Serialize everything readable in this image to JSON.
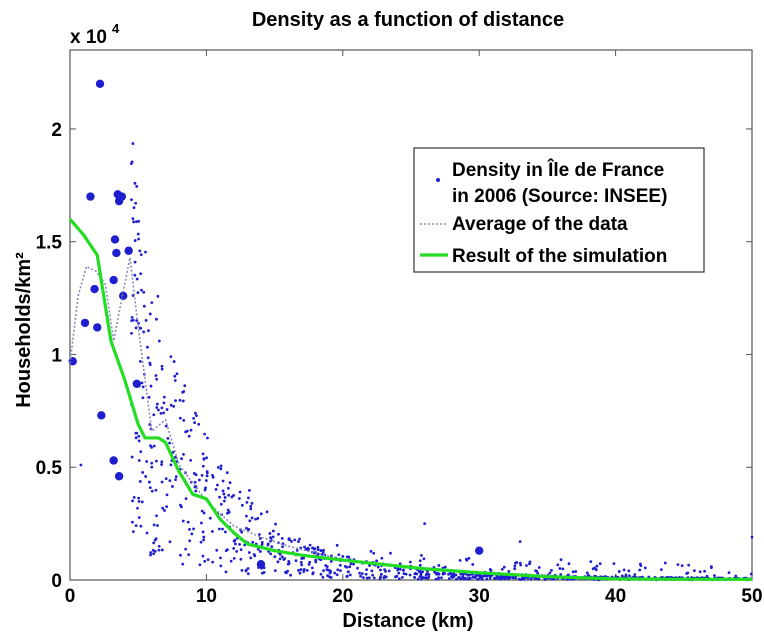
{
  "chart_data": {
    "type": "scatter",
    "title": "Density as a function of distance",
    "xlabel": "Distance (km)",
    "ylabel": "Households/km²",
    "exponent_label": "x 10",
    "exponent_power": "4",
    "xlim": [
      0,
      50
    ],
    "ylim": [
      0,
      23500
    ],
    "x_ticks": [
      0,
      10,
      20,
      30,
      40,
      50
    ],
    "x_tick_labels": [
      "0",
      "10",
      "20",
      "30",
      "40",
      "50"
    ],
    "y_ticks": [
      0,
      5000,
      10000,
      15000,
      20000
    ],
    "y_tick_labels": [
      "0",
      "0.5",
      "1",
      "1.5",
      "2"
    ],
    "grid": false,
    "legend_position": "top-right",
    "legend": {
      "scatter_line1": "Density in Île de France",
      "scatter_line2": "in 2006 (Source: INSEE)",
      "average": "Average of the data",
      "simulation": "Result of the simulation"
    },
    "colors": {
      "scatter": "#1f1fd0",
      "average": "#8a8ab8",
      "simulation": "#22dd22"
    },
    "series": [
      {
        "name": "Density in Île de France in 2006 (Source: INSEE)",
        "kind": "scatter",
        "large_points": [
          {
            "x": 2.2,
            "y": 22000
          },
          {
            "x": 3.5,
            "y": 17100
          },
          {
            "x": 3.8,
            "y": 17000
          },
          {
            "x": 3.6,
            "y": 16800
          },
          {
            "x": 3.3,
            "y": 15100
          },
          {
            "x": 4.3,
            "y": 14600
          },
          {
            "x": 3.4,
            "y": 14500
          },
          {
            "x": 3.2,
            "y": 13300
          },
          {
            "x": 3.9,
            "y": 12600
          },
          {
            "x": 4.9,
            "y": 8700
          },
          {
            "x": 2.3,
            "y": 7300
          },
          {
            "x": 3.2,
            "y": 5300
          },
          {
            "x": 3.6,
            "y": 4600
          },
          {
            "x": 0.2,
            "y": 9700
          },
          {
            "x": 1.5,
            "y": 17000
          },
          {
            "x": 1.1,
            "y": 11400
          },
          {
            "x": 2.0,
            "y": 11200
          },
          {
            "x": 1.8,
            "y": 12900
          },
          {
            "x": 14,
            "y": 700
          },
          {
            "x": 30,
            "y": 1300
          }
        ],
        "small_points": [
          {
            "x": 0.8,
            "y": 5100
          },
          {
            "x": 6.0,
            "y": 12300
          },
          {
            "x": 5.4,
            "y": 11000
          },
          {
            "x": 5.8,
            "y": 8100
          },
          {
            "x": 6.4,
            "y": 7800
          },
          {
            "x": 7.6,
            "y": 7700
          },
          {
            "x": 8.6,
            "y": 6600
          },
          {
            "x": 50,
            "y": 1900
          },
          {
            "x": 12,
            "y": 1400
          },
          {
            "x": 33,
            "y": 1700
          },
          {
            "x": 26,
            "y": 2500
          },
          {
            "x": 36,
            "y": 900
          }
        ]
      },
      {
        "name": "Average of the data",
        "kind": "line",
        "x": [
          0,
          0.6,
          1.2,
          1.9,
          2.6,
          3.2,
          3.8,
          4.4,
          5,
          6,
          7,
          8,
          9,
          10,
          12,
          14,
          16,
          18,
          20,
          22,
          24,
          26,
          28,
          30,
          32,
          34,
          36,
          38,
          40,
          44,
          48,
          50
        ],
        "y": [
          9600,
          12600,
          13900,
          13700,
          13100,
          10600,
          12500,
          14300,
          11200,
          6600,
          7100,
          5100,
          4300,
          3500,
          2400,
          1900,
          1500,
          1200,
          900,
          750,
          600,
          500,
          400,
          300,
          220,
          160,
          100,
          80,
          60,
          40,
          30,
          30
        ]
      },
      {
        "name": "Result of the simulation",
        "kind": "line",
        "x": [
          0,
          1,
          2,
          3,
          4,
          5,
          5.5,
          6.5,
          7,
          8,
          9,
          10,
          11,
          12,
          13,
          15,
          17,
          19,
          22,
          26,
          30,
          35,
          40,
          45,
          50
        ],
        "y": [
          16000,
          15300,
          14400,
          10600,
          8900,
          6900,
          6300,
          6300,
          6100,
          4800,
          3800,
          3600,
          2700,
          2100,
          1600,
          1300,
          1100,
          950,
          750,
          500,
          320,
          150,
          50,
          30,
          30
        ]
      }
    ]
  }
}
